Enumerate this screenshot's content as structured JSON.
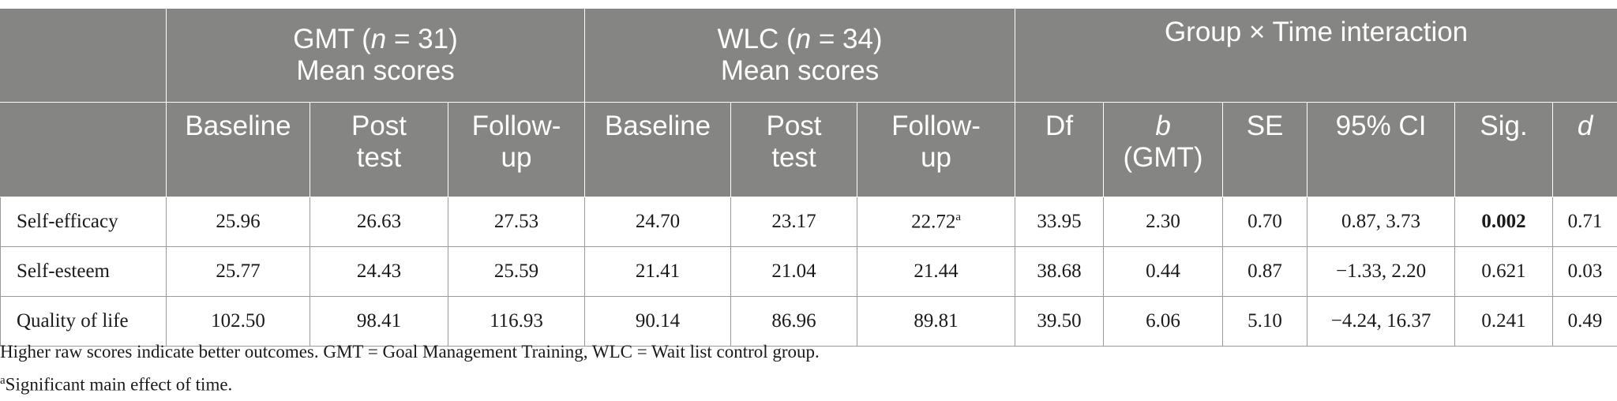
{
  "header": {
    "groups": [
      {
        "label_pre": "GMT (",
        "n_italic": "n",
        "label_post": " = 31)",
        "subtitle": "Mean scores"
      },
      {
        "label_pre": "WLC (",
        "n_italic": "n",
        "label_post": " = 34)",
        "subtitle": "Mean scores"
      },
      {
        "label": "Group × Time interaction"
      }
    ],
    "columns": [
      {
        "line1": "Baseline",
        "line2": ""
      },
      {
        "line1": "Post",
        "line2": "test"
      },
      {
        "line1": "Follow-",
        "line2": "up"
      },
      {
        "line1": "Baseline",
        "line2": ""
      },
      {
        "line1": "Post",
        "line2": "test"
      },
      {
        "line1": "Follow-",
        "line2": "up"
      },
      {
        "line1": "Df",
        "line2": ""
      },
      {
        "line1": "b",
        "line2": "(GMT)"
      },
      {
        "line1": "SE",
        "line2": ""
      },
      {
        "line1": "95% CI",
        "line2": ""
      },
      {
        "line1": "Sig.",
        "line2": ""
      },
      {
        "line1": "d",
        "line2": ""
      }
    ]
  },
  "rows": [
    {
      "label": "Self-efficacy",
      "cells": [
        "25.96",
        "26.63",
        "27.53",
        "24.70",
        "23.17",
        "22.72",
        "33.95",
        "2.30",
        "0.70",
        "0.87, 3.73",
        "0.002",
        "0.71"
      ],
      "footnote_mark": "a"
    },
    {
      "label": "Self-esteem",
      "cells": [
        "25.77",
        "24.43",
        "25.59",
        "21.41",
        "21.04",
        "21.44",
        "38.68",
        "0.44",
        "0.87",
        "−1.33, 2.20",
        "0.621",
        "0.03"
      ]
    },
    {
      "label": "Quality of life",
      "cells": [
        "102.50",
        "98.41",
        "116.93",
        "90.14",
        "86.96",
        "89.81",
        "39.50",
        "6.06",
        "5.10",
        "−4.24, 16.37",
        "0.241",
        "0.49"
      ]
    }
  ],
  "notes": {
    "line1": "Higher raw scores indicate better outcomes. GMT = Goal Management Training, WLC = Wait list control group.",
    "footnote_mark": "a",
    "line2": "Significant main effect of time."
  }
}
